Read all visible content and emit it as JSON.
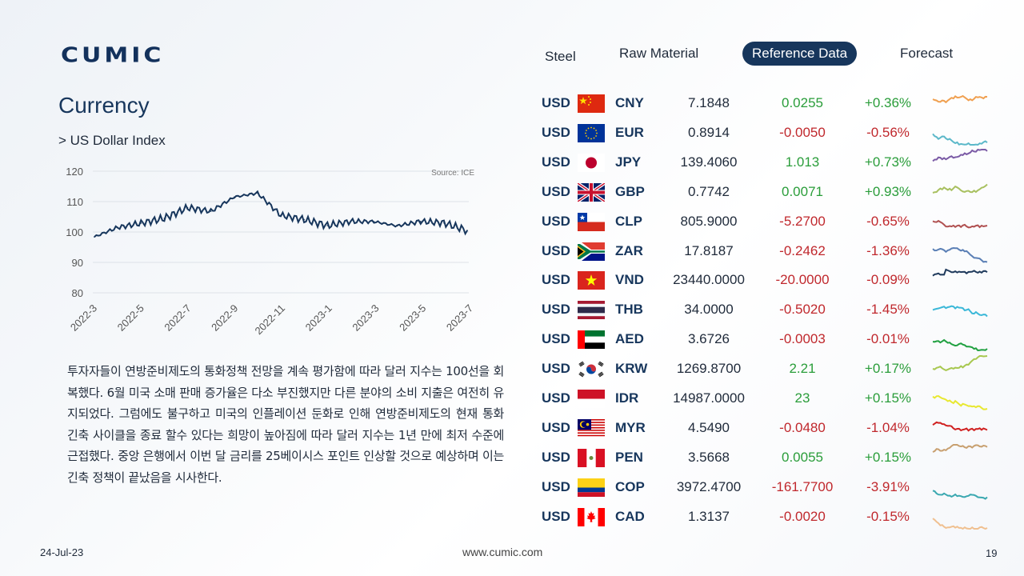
{
  "brand": {
    "logo_text": "CUMIC"
  },
  "nav": {
    "items": [
      "Steel",
      "Raw Material",
      "Reference Data",
      "Forecast"
    ],
    "active": "Reference Data"
  },
  "page": {
    "title": "Currency",
    "subtitle": "> US Dollar Index"
  },
  "chart_data": {
    "type": "line",
    "title": "",
    "source": "Source: ICE",
    "xlabel": "",
    "ylabel": "",
    "ylim": [
      80,
      120
    ],
    "yticks": [
      80,
      90,
      100,
      110,
      120
    ],
    "xticks": [
      "2022-3",
      "2022-5",
      "2022-7",
      "2022-9",
      "2022-11",
      "2023-1",
      "2023-3",
      "2023-5",
      "2023-7"
    ],
    "grid": true,
    "color": "#17365c",
    "series": [
      {
        "x": [
          "2022-3",
          "2022-4",
          "2022-5",
          "2022-6",
          "2022-7",
          "2022-8",
          "2022-9",
          "2022-10",
          "2022-11",
          "2022-12",
          "2023-1",
          "2023-2",
          "2023-3",
          "2023-4",
          "2023-5",
          "2023-6",
          "2023-7"
        ],
        "values": [
          98.4,
          101.5,
          102.9,
          104.5,
          108.0,
          106.8,
          111.5,
          112.8,
          105.5,
          104.1,
          102.1,
          103.5,
          103.4,
          102.0,
          103.5,
          103.0,
          100.5
        ]
      }
    ]
  },
  "description": "투자자들이 연방준비제도의 통화정책 전망을 계속 평가함에 따라 달러 지수는 100선을 회복했다. 6월 미국 소매 판매 증가율은 다소 부진했지만 다른 분야의 소비 지출은 여전히 유지되었다. 그럼에도 불구하고 미국의 인플레이션 둔화로 인해 연방준비제도의 현재 통화 긴축 사이클을 종료 할수 있다는 희망이 높아짐에 따라 달러 지수는 1년 만에 최저 수준에 근접했다. 중앙 은행에서 이번 달 금리를 25베이시스 포인트 인상할 것으로 예상하며 이는 긴축 정책이 끝났음을 시사한다.",
  "rates": [
    {
      "base": "USD",
      "code": "CNY",
      "flag": "china",
      "rate": "7.1848",
      "change": "0.0255",
      "pct": "+0.36%",
      "dir": "pos",
      "spark_color": "#f0a050"
    },
    {
      "base": "USD",
      "code": "EUR",
      "flag": "eu",
      "rate": "0.8914",
      "change": "-0.0050",
      "pct": "-0.56%",
      "dir": "neg",
      "spark_color": "#5bb8c9"
    },
    {
      "base": "USD",
      "code": "JPY",
      "flag": "japan",
      "rate": "139.4060",
      "change": "1.013",
      "pct": "+0.73%",
      "dir": "pos",
      "spark_color": "#7b5ba6"
    },
    {
      "base": "USD",
      "code": "GBP",
      "flag": "uk",
      "rate": "0.7742",
      "change": "0.0071",
      "pct": "+0.93%",
      "dir": "pos",
      "spark_color": "#a8c060"
    },
    {
      "base": "USD",
      "code": "CLP",
      "flag": "chile",
      "rate": "805.9000",
      "change": "-5.2700",
      "pct": "-0.65%",
      "dir": "neg",
      "spark_color": "#b05050"
    },
    {
      "base": "USD",
      "code": "ZAR",
      "flag": "southafrica",
      "rate": "17.8187",
      "change": "-0.2462",
      "pct": "-1.36%",
      "dir": "neg",
      "spark_color": "#5a7fb5"
    },
    {
      "base": "USD",
      "code": "VND",
      "flag": "vietnam",
      "rate": "23440.0000",
      "change": "-20.0000",
      "pct": "-0.09%",
      "dir": "neg",
      "spark_color": "#1f3a5c"
    },
    {
      "base": "USD",
      "code": "THB",
      "flag": "thailand",
      "rate": "34.0000",
      "change": "-0.5020",
      "pct": "-1.45%",
      "dir": "neg",
      "spark_color": "#3bb8d8"
    },
    {
      "base": "USD",
      "code": "AED",
      "flag": "uae",
      "rate": "3.6726",
      "change": "-0.0003",
      "pct": "-0.01%",
      "dir": "neg",
      "spark_color": "#20a040"
    },
    {
      "base": "USD",
      "code": "KRW",
      "flag": "korea",
      "rate": "1269.8700",
      "change": "2.21",
      "pct": "+0.17%",
      "dir": "pos",
      "spark_color": "#a8c850"
    },
    {
      "base": "USD",
      "code": "IDR",
      "flag": "indonesia",
      "rate": "14987.0000",
      "change": "23",
      "pct": "+0.15%",
      "dir": "pos",
      "spark_color": "#e8e830"
    },
    {
      "base": "USD",
      "code": "MYR",
      "flag": "malaysia",
      "rate": "4.5490",
      "change": "-0.0480",
      "pct": "-1.04%",
      "dir": "neg",
      "spark_color": "#d02020"
    },
    {
      "base": "USD",
      "code": "PEN",
      "flag": "peru",
      "rate": "3.5668",
      "change": "0.0055",
      "pct": "+0.15%",
      "dir": "pos",
      "spark_color": "#c8a070"
    },
    {
      "base": "USD",
      "code": "COP",
      "flag": "colombia",
      "rate": "3972.4700",
      "change": "-161.7700",
      "pct": "-3.91%",
      "dir": "neg",
      "spark_color": "#3aa8b0"
    },
    {
      "base": "USD",
      "code": "CAD",
      "flag": "canada",
      "rate": "1.3137",
      "change": "-0.0020",
      "pct": "-0.15%",
      "dir": "neg",
      "spark_color": "#f0c090"
    }
  ],
  "footer": {
    "date": "24-Jul-23",
    "url": "www.cumic.com",
    "page": "19"
  }
}
